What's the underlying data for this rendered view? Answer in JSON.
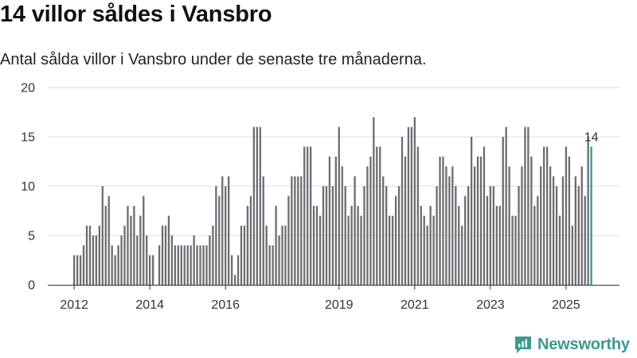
{
  "header": {
    "title": "14 villor såldes i Vansbro",
    "subtitle": "Antal sålda villor i Vansbro under de senaste tre månaderna."
  },
  "brand": {
    "name": "Newsworthy"
  },
  "colors": {
    "bar": "#6d6c72",
    "highlight": "#2a9a92",
    "grid": "#dddddd",
    "axis": "#333333"
  },
  "chart_data": {
    "type": "bar",
    "title": "14 villor såldes i Vansbro",
    "subtitle": "Antal sålda villor i Vansbro under de senaste tre månaderna.",
    "xlabel": "",
    "ylabel": "",
    "ylim": [
      0,
      20
    ],
    "yticks": [
      0,
      5,
      10,
      15,
      20
    ],
    "xticks": [
      {
        "label": "2012",
        "month_index": 0
      },
      {
        "label": "2014",
        "month_index": 24
      },
      {
        "label": "2016",
        "month_index": 48
      },
      {
        "label": "2019",
        "month_index": 84
      },
      {
        "label": "2021",
        "month_index": 108
      },
      {
        "label": "2023",
        "month_index": 132
      },
      {
        "label": "2025",
        "month_index": 156
      }
    ],
    "start": "2012-01",
    "highlight_label": "14",
    "values": [
      3,
      3,
      3,
      4,
      6,
      6,
      5,
      5,
      6,
      10,
      8,
      9,
      4,
      3,
      4,
      5,
      6,
      8,
      7,
      8,
      5,
      7,
      9,
      5,
      3,
      3,
      0,
      4,
      6,
      6,
      7,
      5,
      4,
      4,
      4,
      4,
      4,
      4,
      5,
      4,
      4,
      4,
      4,
      5,
      6,
      10,
      9,
      11,
      10,
      11,
      3,
      1,
      3,
      6,
      6,
      8,
      9,
      16,
      16,
      16,
      11,
      6,
      4,
      4,
      8,
      5,
      6,
      6,
      9,
      11,
      11,
      11,
      11,
      14,
      14,
      14,
      8,
      8,
      7,
      10,
      10,
      13,
      10,
      13,
      16,
      12,
      10,
      7,
      8,
      11,
      8,
      7,
      10,
      12,
      13,
      17,
      14,
      14,
      11,
      10,
      7,
      7,
      9,
      10,
      15,
      13,
      16,
      16,
      17,
      14,
      8,
      7,
      6,
      8,
      7,
      10,
      13,
      13,
      12,
      11,
      12,
      10,
      8,
      6,
      9,
      10,
      15,
      12,
      13,
      13,
      14,
      9,
      10,
      10,
      8,
      8,
      15,
      16,
      12,
      7,
      7,
      10,
      12,
      16,
      16,
      13,
      8,
      9,
      12,
      14,
      14,
      12,
      11,
      10,
      7,
      11,
      14,
      13,
      6,
      11,
      10,
      12,
      9,
      15,
      14
    ],
    "highlight_index": 164
  }
}
